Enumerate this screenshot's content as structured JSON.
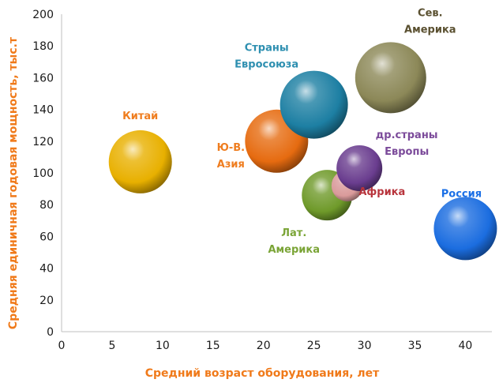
{
  "chart_data": {
    "type": "bubble",
    "xlabel": "Средний возраст оборудования, лет",
    "ylabel": "Средняя единичная годовая мощность, тыс.т",
    "xlim": [
      0,
      42
    ],
    "ylim": [
      0,
      200
    ],
    "xticks": [
      0,
      5,
      10,
      15,
      20,
      25,
      30,
      35,
      40
    ],
    "yticks": [
      0,
      20,
      40,
      60,
      80,
      100,
      120,
      140,
      160,
      180,
      200
    ],
    "grid": false,
    "points": [
      {
        "label": [
          "Китай"
        ],
        "x": 7.8,
        "y": 107,
        "color": "#e8b000",
        "label_color": "#ef7d1f"
      },
      {
        "label": [
          "Ю-В.",
          "Азия"
        ],
        "x": 21.3,
        "y": 120,
        "color": "#e66b10",
        "label_color": "#ef7d1f"
      },
      {
        "label": [
          "Страны",
          "Евросоюза"
        ],
        "x": 25.0,
        "y": 143,
        "color": "#1d7fa3",
        "label_color": "#2d8fb0"
      },
      {
        "label": [
          "Сев.",
          "Америка"
        ],
        "x": 32.6,
        "y": 160,
        "color": "#8c8858",
        "label_color": "#5a5030"
      },
      {
        "label": [
          "Лат.",
          "Америка"
        ],
        "x": 26.3,
        "y": 86,
        "color": "#6f9a2a",
        "label_color": "#7aa436"
      },
      {
        "label": [
          "Африка"
        ],
        "x": 28.3,
        "y": 92,
        "color": "#d99a9a",
        "label_color": "#b8343c"
      },
      {
        "label": [
          "др.страны",
          "Европы"
        ],
        "x": 29.5,
        "y": 103,
        "color": "#6a3d8f",
        "label_color": "#7b4a9a"
      },
      {
        "label": [
          "Россия"
        ],
        "x": 40.0,
        "y": 65,
        "color": "#1b6de0",
        "label_color": "#1a6fe6"
      }
    ]
  }
}
